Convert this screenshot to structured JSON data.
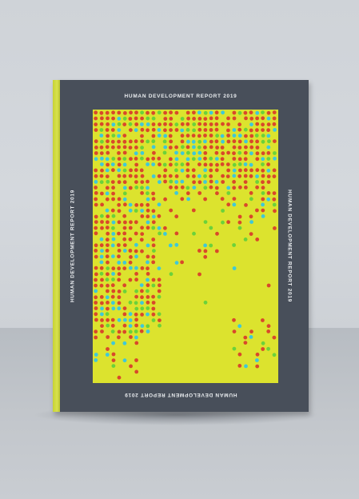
{
  "cover": {
    "title_top": "HUMAN DEVELOPMENT REPORT 2019",
    "title_left": "HUMAN DEVELOPMENT REPORT 2019",
    "title_right": "HUMAN DEVELOPMENT REPORT 2019",
    "title_bottom": "HUMAN DEVELOPMENT REPORT 2019"
  },
  "colors": {
    "wall": "#d2d6db",
    "floor": "#bfc3c8",
    "cover": "#484f5a",
    "spine": "#d4de44",
    "panel": "#dce32e",
    "dot_red": "#d9482a",
    "dot_cyan": "#3fc8d8",
    "dot_green": "#6bd23a"
  }
}
